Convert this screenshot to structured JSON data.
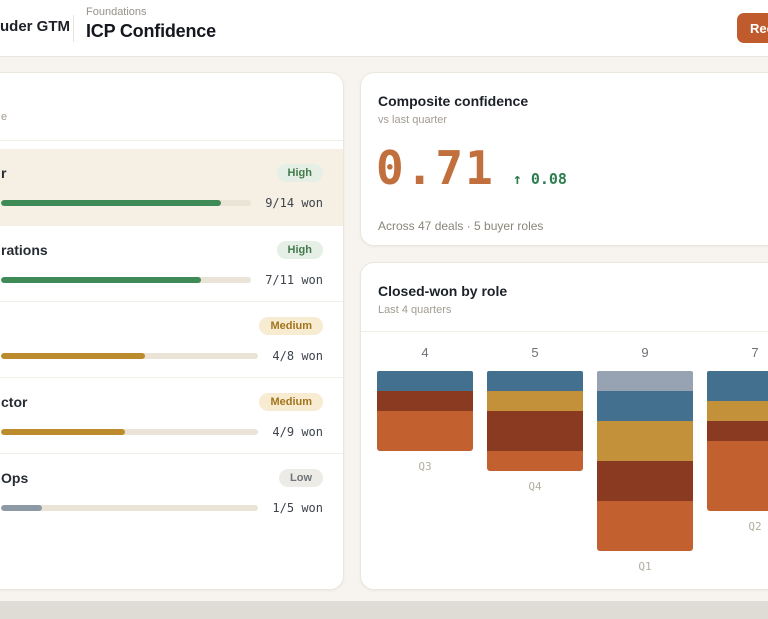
{
  "header": {
    "brand_fragment": "uder GTM",
    "breadcrumb": "Foundations",
    "title": "ICP Confidence",
    "action_fragment": "Rec"
  },
  "roles_panel": {
    "subtitle_fragment": "e",
    "rows": [
      {
        "label_fragment": "r",
        "badge": "High",
        "level": "high",
        "fill_pct": 88,
        "fill": "green",
        "won": "9/14 won",
        "selected": true
      },
      {
        "label_fragment": "rations",
        "badge": "High",
        "level": "high",
        "fill_pct": 80,
        "fill": "green",
        "won": "7/11 won",
        "selected": false
      },
      {
        "label_fragment": "",
        "badge": "Medium",
        "level": "medium",
        "fill_pct": 56,
        "fill": "gold",
        "won": "4/8 won",
        "selected": false
      },
      {
        "label_fragment": "ctor",
        "badge": "Medium",
        "level": "medium",
        "fill_pct": 48,
        "fill": "gold",
        "won": "4/9 won",
        "selected": false
      },
      {
        "label_fragment": "Ops",
        "badge": "Low",
        "level": "low",
        "fill_pct": 16,
        "fill": "slate",
        "won": "1/5 won",
        "selected": false
      }
    ],
    "fill_colors": {
      "green": "#3f8b57",
      "gold": "#bb8b2e",
      "slate": "#8e99a6"
    }
  },
  "composite": {
    "title": "Composite confidence",
    "subtitle": "vs last quarter",
    "value": "0.71",
    "delta": "↑ 0.08",
    "caption": "Across 47 deals · 5 buyer roles"
  },
  "chart_card": {
    "title": "Closed-won by role",
    "subtitle": "Last 4 quarters"
  },
  "chart_data": {
    "type": "bar",
    "variant": "stacked-hanging",
    "categories": [
      "Q3",
      "Q4",
      "Q1",
      "Q2"
    ],
    "totals": [
      4,
      5,
      9,
      7
    ],
    "unit": "closed-won deals",
    "legend": false,
    "bars": [
      {
        "label": "Q3",
        "total": 4,
        "segments": [
          {
            "key": "blue",
            "value": 1
          },
          {
            "key": "maroon",
            "value": 1
          },
          {
            "key": "orange",
            "value": 2
          }
        ]
      },
      {
        "label": "Q4",
        "total": 5,
        "segments": [
          {
            "key": "blue",
            "value": 1
          },
          {
            "key": "gold",
            "value": 1
          },
          {
            "key": "maroon",
            "value": 2
          },
          {
            "key": "orange",
            "value": 1
          }
        ]
      },
      {
        "label": "Q1",
        "total": 9,
        "segments": [
          {
            "key": "gray",
            "value": 1
          },
          {
            "key": "blue",
            "value": 1.5
          },
          {
            "key": "gold",
            "value": 2
          },
          {
            "key": "maroon",
            "value": 2
          },
          {
            "key": "orange",
            "value": 2.5
          }
        ]
      },
      {
        "label": "Q2",
        "total": 7,
        "segments": [
          {
            "key": "blue",
            "value": 1.5
          },
          {
            "key": "gold",
            "value": 1
          },
          {
            "key": "maroon",
            "value": 1
          },
          {
            "key": "orange",
            "value": 3.5
          }
        ]
      }
    ],
    "palette": {
      "gray": "#97a3b2",
      "blue": "#44708f",
      "gold": "#c3913a",
      "maroon": "#8a3a20",
      "orange": "#c2602f"
    }
  },
  "colors": {
    "accent_button": "#bf5b2d",
    "value_text": "#c16f3d",
    "delta_green": "#2d7d4f"
  }
}
